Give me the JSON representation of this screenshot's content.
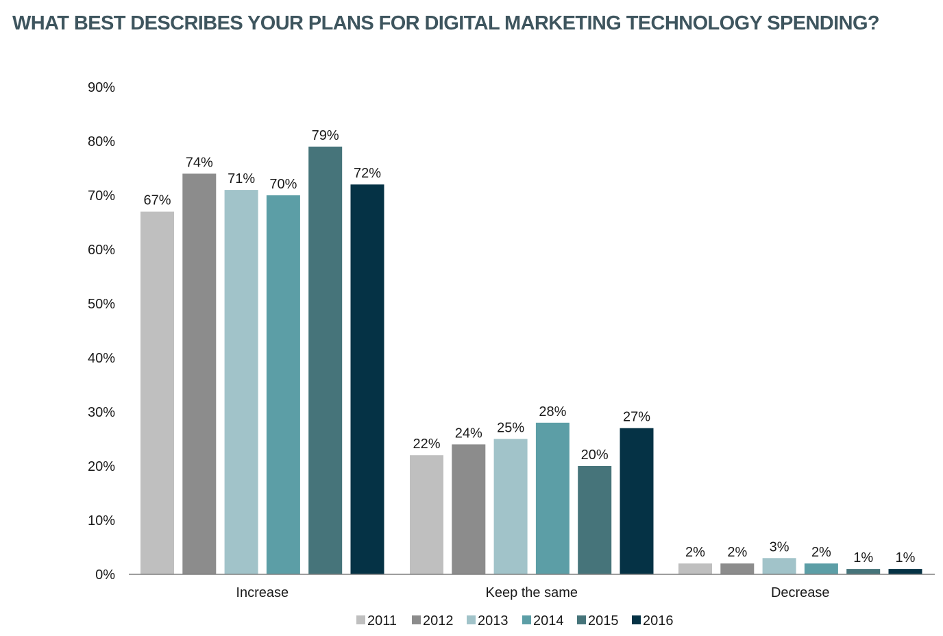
{
  "chart_data": {
    "type": "bar",
    "title": "WHAT BEST DESCRIBES YOUR PLANS FOR DIGITAL MARKETING TECHNOLOGY SPENDING?",
    "xlabel": "",
    "ylabel": "",
    "categories": [
      "Increase",
      "Keep the same",
      "Decrease"
    ],
    "y_ticks": [
      "0%",
      "10%",
      "20%",
      "30%",
      "40%",
      "50%",
      "60%",
      "70%",
      "80%",
      "90%"
    ],
    "ylim": [
      0,
      90
    ],
    "grid": false,
    "legend_position": "bottom",
    "series": [
      {
        "name": "2011",
        "color": "#bfbfbf",
        "values": [
          67,
          22,
          2
        ],
        "labels": [
          "67%",
          "22%",
          "2%"
        ]
      },
      {
        "name": "2012",
        "color": "#8c8c8c",
        "values": [
          74,
          24,
          2
        ],
        "labels": [
          "74%",
          "24%",
          "2%"
        ]
      },
      {
        "name": "2013",
        "color": "#a1c3c9",
        "values": [
          71,
          25,
          3
        ],
        "labels": [
          "71%",
          "25%",
          "3%"
        ]
      },
      {
        "name": "2014",
        "color": "#5c9ea6",
        "values": [
          70,
          28,
          2
        ],
        "labels": [
          "70%",
          "28%",
          "2%"
        ]
      },
      {
        "name": "2015",
        "color": "#46747a",
        "values": [
          79,
          20,
          1
        ],
        "labels": [
          "79%",
          "20%",
          "1%"
        ]
      },
      {
        "name": "2016",
        "color": "#053245",
        "values": [
          72,
          27,
          1
        ],
        "labels": [
          "72%",
          "27%",
          "1%"
        ]
      }
    ]
  }
}
